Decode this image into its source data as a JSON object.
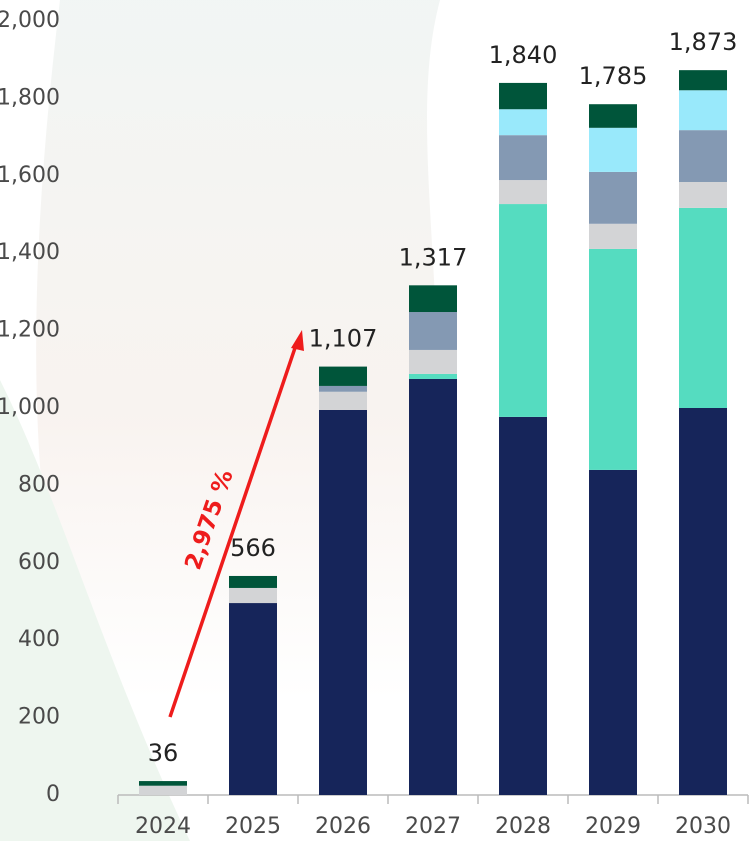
{
  "chart_data": {
    "type": "stacked_bar",
    "categories": [
      "2024",
      "2025",
      "2026",
      "2027",
      "2028",
      "2029",
      "2030"
    ],
    "series": [
      {
        "color": "#16255a",
        "values": [
          null,
          496,
          995,
          1075,
          977,
          840,
          1000
        ]
      },
      {
        "color": "#55dcc0",
        "values": [
          null,
          null,
          null,
          13,
          550,
          571,
          517
        ]
      },
      {
        "color": "#d3d4d6",
        "values": [
          24,
          39,
          47,
          62,
          62,
          65,
          67
        ]
      },
      {
        "color": "#8499b3",
        "values": [
          null,
          null,
          15,
          98,
          116,
          134,
          134
        ]
      },
      {
        "color": "#99e9fb",
        "values": [
          null,
          null,
          null,
          null,
          67,
          114,
          103
        ]
      },
      {
        "color": "#00553a",
        "values": [
          12,
          31,
          50,
          69,
          68,
          61,
          52
        ]
      }
    ],
    "totals": {
      "values": [
        36,
        566,
        1107,
        1317,
        1840,
        1785,
        1873
      ],
      "value_labels": [
        "36",
        "566",
        "1,107",
        "1,317",
        "1,840",
        "1,785",
        "1,873"
      ]
    },
    "annotation": "2,975 %",
    "annotation_color": "#ee1c1c",
    "ylim": [
      0,
      2000
    ],
    "yticks": [
      0,
      200,
      400,
      600,
      800,
      {
        "value": 1000,
        "label": "1,000"
      },
      {
        "value": 1200,
        "label": "1,200"
      },
      {
        "value": 1400,
        "label": "1,400"
      },
      {
        "value": 1600,
        "label": "1,600"
      },
      {
        "value": 1800,
        "label": "1,800"
      },
      {
        "value": 2000,
        "label": "2,000"
      }
    ],
    "grid": false
  }
}
